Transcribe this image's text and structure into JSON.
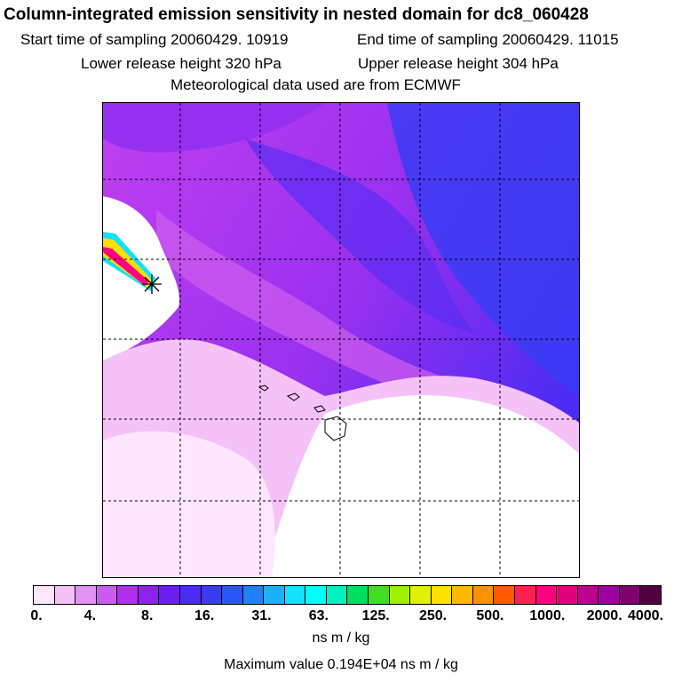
{
  "header": {
    "title": "Column-integrated emission sensitivity in nested domain for dc8_060428",
    "start_label": "Start time of sampling 20060429. 10919",
    "end_label": "End time of sampling 20060429. 11015",
    "lower_label": "Lower release height  320 hPa",
    "upper_label": "Upper release height  304 hPa",
    "met_label": "Meteorological data used are from ECMWF"
  },
  "colorbar": {
    "tick_labels": [
      "0.",
      "4.",
      "8.",
      "16.",
      "31.",
      "63.",
      "125.",
      "250.",
      "500.",
      "1000.",
      "2000.",
      "4000."
    ],
    "colors": [
      "#ffe6ff",
      "#f5c2f8",
      "#e293f2",
      "#cc5cee",
      "#b22ef0",
      "#8f22f0",
      "#6a1ff0",
      "#4a2cf2",
      "#3a3cf4",
      "#2a56f6",
      "#2080f8",
      "#1ab0fa",
      "#16e0fc",
      "#00ffff",
      "#00f0c0",
      "#00e060",
      "#40e020",
      "#a0f000",
      "#e0f000",
      "#ffe000",
      "#ffb800",
      "#ff9000",
      "#ff5a00",
      "#ff2050",
      "#ff0080",
      "#e0007a",
      "#c00090",
      "#a000a0",
      "#800070",
      "#500040"
    ],
    "units_label": "ns m / kg",
    "max_value_label": "Maximum value  0.194E+04 ns m / kg"
  },
  "map": {
    "gridlines": "dashed",
    "marker": "release-point-star"
  }
}
